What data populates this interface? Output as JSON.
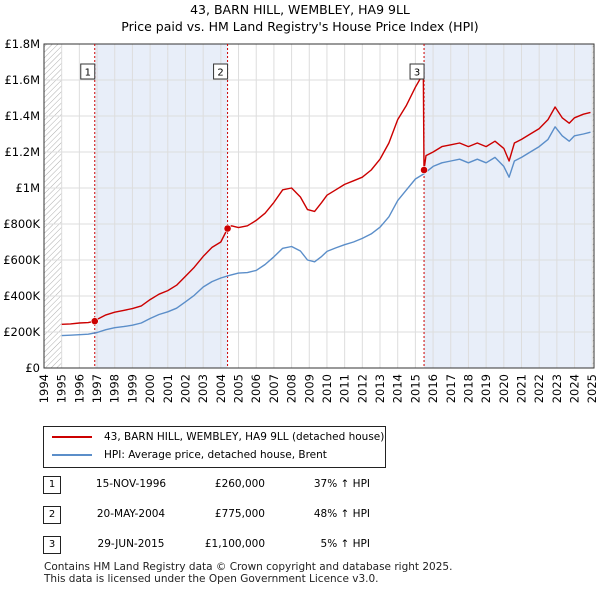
{
  "chart_data": {
    "type": "line",
    "title": "43, BARN HILL, WEMBLEY, HA9 9LL",
    "subtitle": "Price paid vs. HM Land Registry's House Price Index (HPI)",
    "xlim": [
      1994,
      2025.1
    ],
    "ylim": [
      0,
      1800000
    ],
    "x_ticks": [
      "1994",
      "1995",
      "1996",
      "1997",
      "1998",
      "1999",
      "2000",
      "2001",
      "2002",
      "2003",
      "2004",
      "2005",
      "2006",
      "2007",
      "2008",
      "2009",
      "2010",
      "2011",
      "2012",
      "2013",
      "2014",
      "2015",
      "2016",
      "2017",
      "2018",
      "2019",
      "2020",
      "2021",
      "2022",
      "2023",
      "2024",
      "2025"
    ],
    "y_ticks": [
      {
        "value": 0,
        "label": "£0"
      },
      {
        "value": 200000,
        "label": "£200K"
      },
      {
        "value": 400000,
        "label": "£400K"
      },
      {
        "value": 600000,
        "label": "£600K"
      },
      {
        "value": 800000,
        "label": "£800K"
      },
      {
        "value": 1000000,
        "label": "£1M"
      },
      {
        "value": 1200000,
        "label": "£1.2M"
      },
      {
        "value": 1400000,
        "label": "£1.4M"
      },
      {
        "value": 1600000,
        "label": "£1.6M"
      },
      {
        "value": 1800000,
        "label": "£1.8M"
      }
    ],
    "grid": true,
    "series": [
      {
        "name": "43, BARN HILL, WEMBLEY, HA9 9LL (detached house)",
        "color": "#cc0000",
        "x": [
          1995.0,
          1995.5,
          1996.0,
          1996.5,
          1996.87,
          1997.0,
          1997.5,
          1998.0,
          1998.5,
          1999.0,
          1999.5,
          2000.0,
          2000.5,
          2001.0,
          2001.5,
          2002.0,
          2002.5,
          2003.0,
          2003.5,
          2004.0,
          2004.38,
          2004.6,
          2005.0,
          2005.5,
          2006.0,
          2006.5,
          2007.0,
          2007.5,
          2008.0,
          2008.5,
          2008.9,
          2009.3,
          2009.7,
          2010.0,
          2010.5,
          2011.0,
          2011.5,
          2012.0,
          2012.5,
          2013.0,
          2013.5,
          2014.0,
          2014.5,
          2015.0,
          2015.35,
          2015.45,
          2015.49,
          2015.6,
          2016.0,
          2016.5,
          2017.0,
          2017.5,
          2018.0,
          2018.5,
          2019.0,
          2019.5,
          2020.0,
          2020.3,
          2020.6,
          2021.0,
          2021.5,
          2022.0,
          2022.5,
          2022.9,
          2023.3,
          2023.7,
          2024.0,
          2024.5,
          2024.9
        ],
        "y": [
          243000,
          245000,
          250000,
          252000,
          260000,
          270000,
          295000,
          310000,
          320000,
          330000,
          345000,
          380000,
          410000,
          430000,
          460000,
          510000,
          560000,
          620000,
          670000,
          700000,
          775000,
          790000,
          780000,
          790000,
          820000,
          860000,
          920000,
          990000,
          1000000,
          950000,
          880000,
          870000,
          920000,
          960000,
          990000,
          1020000,
          1040000,
          1060000,
          1100000,
          1160000,
          1250000,
          1380000,
          1460000,
          1560000,
          1620000,
          1650000,
          1100000,
          1180000,
          1200000,
          1230000,
          1240000,
          1250000,
          1230000,
          1250000,
          1230000,
          1260000,
          1220000,
          1150000,
          1250000,
          1270000,
          1300000,
          1330000,
          1380000,
          1450000,
          1390000,
          1360000,
          1390000,
          1410000,
          1420000
        ]
      },
      {
        "name": "HPI: Average price, detached house, Brent",
        "color": "#5b8ec9",
        "x": [
          1995.0,
          1995.5,
          1996.0,
          1996.5,
          1997.0,
          1997.5,
          1998.0,
          1998.5,
          1999.0,
          1999.5,
          2000.0,
          2000.5,
          2001.0,
          2001.5,
          2002.0,
          2002.5,
          2003.0,
          2003.5,
          2004.0,
          2004.5,
          2005.0,
          2005.5,
          2006.0,
          2006.5,
          2007.0,
          2007.5,
          2008.0,
          2008.5,
          2008.9,
          2009.3,
          2009.7,
          2010.0,
          2010.5,
          2011.0,
          2011.5,
          2012.0,
          2012.5,
          2013.0,
          2013.5,
          2014.0,
          2014.5,
          2015.0,
          2015.5,
          2016.0,
          2016.5,
          2017.0,
          2017.5,
          2018.0,
          2018.5,
          2019.0,
          2019.5,
          2020.0,
          2020.3,
          2020.6,
          2021.0,
          2021.5,
          2022.0,
          2022.5,
          2022.9,
          2023.3,
          2023.7,
          2024.0,
          2024.5,
          2024.9
        ],
        "y": [
          180000,
          182000,
          185000,
          188000,
          197000,
          213000,
          224000,
          230000,
          238000,
          250000,
          275000,
          297000,
          312000,
          332000,
          368000,
          404000,
          450000,
          480000,
          500000,
          515000,
          527000,
          530000,
          542000,
          575000,
          618000,
          665000,
          675000,
          650000,
          600000,
          590000,
          620000,
          648000,
          667000,
          685000,
          700000,
          720000,
          745000,
          782000,
          840000,
          930000,
          990000,
          1050000,
          1080000,
          1120000,
          1140000,
          1150000,
          1160000,
          1140000,
          1160000,
          1140000,
          1170000,
          1120000,
          1060000,
          1150000,
          1170000,
          1200000,
          1230000,
          1270000,
          1340000,
          1290000,
          1260000,
          1290000,
          1300000,
          1310000
        ]
      }
    ],
    "sale_markers": [
      {
        "label": "1",
        "x": 1996.87,
        "y": 260000
      },
      {
        "label": "2",
        "x": 2004.38,
        "y": 775000
      },
      {
        "label": "3",
        "x": 2015.49,
        "y": 1100000
      }
    ]
  },
  "legend": {
    "entries": [
      {
        "label": "43, BARN HILL, WEMBLEY, HA9 9LL (detached house)",
        "color": "#cc0000"
      },
      {
        "label": "HPI: Average price, detached house, Brent",
        "color": "#5b8ec9"
      }
    ]
  },
  "sales": [
    {
      "num": "1",
      "date": "15-NOV-1996",
      "price": "£260,000",
      "hpi": "37% ↑ HPI"
    },
    {
      "num": "2",
      "date": "20-MAY-2004",
      "price": "£775,000",
      "hpi": "48% ↑ HPI"
    },
    {
      "num": "3",
      "date": "29-JUN-2015",
      "price": "£1,100,000",
      "hpi": "5% ↑ HPI"
    }
  ],
  "footer": {
    "line1": "Contains HM Land Registry data © Crown copyright and database right 2025.",
    "line2": "This data is licensed under the Open Government Licence v3.0."
  },
  "colors": {
    "shade": "#e8eef9",
    "grid": "#dddddd",
    "vline": "#cc0000",
    "hatch": "#999999"
  }
}
